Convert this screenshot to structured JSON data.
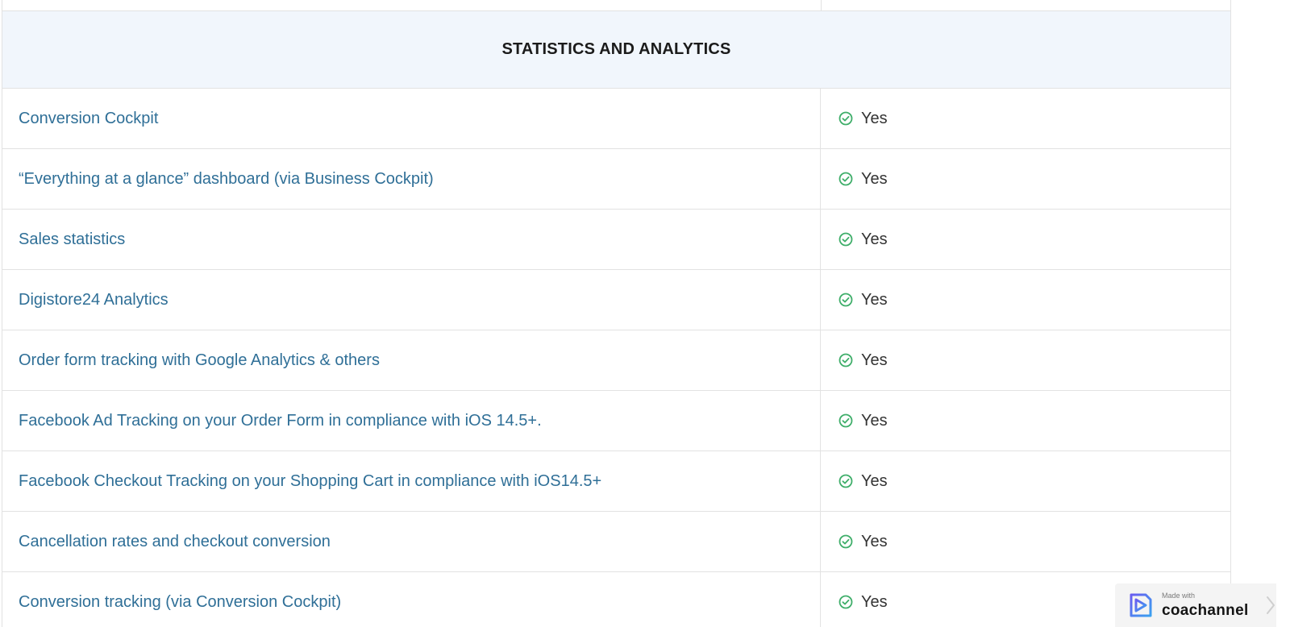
{
  "section": {
    "title": "STATISTICS AND ANALYTICS"
  },
  "rows": [
    {
      "feature": "Conversion Cockpit",
      "value": "Yes"
    },
    {
      "feature": "“Everything at a glance” dashboard (via Business Cockpit)",
      "value": "Yes"
    },
    {
      "feature": "Sales statistics",
      "value": "Yes"
    },
    {
      "feature": "Digistore24 Analytics",
      "value": "Yes"
    },
    {
      "feature": "Order form tracking with Google Analytics & others",
      "value": "Yes"
    },
    {
      "feature": "Facebook Ad Tracking on your Order Form in compliance with iOS 14.5+.",
      "value": "Yes"
    },
    {
      "feature": "Facebook Checkout Tracking on your Shopping Cart in compliance with iOS14.5+",
      "value": "Yes"
    },
    {
      "feature": "Cancellation rates and checkout conversion",
      "value": "Yes"
    },
    {
      "feature": "Conversion tracking (via Conversion Cockpit)",
      "value": "Yes"
    }
  ],
  "badge": {
    "made_with": "Made with",
    "brand": "coachannel"
  },
  "icons": {
    "check": "check-circle-icon",
    "logo": "coachannel-logo-icon",
    "chevron": "chevron-right-icon"
  },
  "colors": {
    "feature_text": "#2f6f97",
    "check_green": "#3fae6a",
    "header_bg": "#f1f6fc",
    "border": "#e2e2e2"
  }
}
